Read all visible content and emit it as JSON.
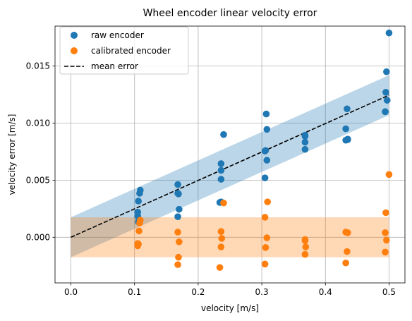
{
  "chart_data": {
    "type": "scatter",
    "title": "Wheel encoder linear velocity error",
    "xlabel": "velocity [m/s]",
    "ylabel": "velocity error [m/s]",
    "xlim": [
      -0.025,
      0.525
    ],
    "ylim": [
      -0.004,
      0.0185
    ],
    "xticks": [
      0.0,
      0.1,
      0.2,
      0.3,
      0.4,
      0.5
    ],
    "xtick_labels": [
      "0.0",
      "0.1",
      "0.2",
      "0.3",
      "0.4",
      "0.5"
    ],
    "yticks": [
      0.0,
      0.005,
      0.01,
      0.015
    ],
    "ytick_labels": [
      "0.000",
      "0.005",
      "0.010",
      "0.015"
    ],
    "grid": true,
    "legend_position": "top-left",
    "colors": {
      "raw": "#1f77b4",
      "calibrated": "#ff7f0e",
      "mean": "#000000",
      "raw_band": "#1f77b4",
      "calibrated_band": "#ff7f0e"
    },
    "series": [
      {
        "name": "raw encoder",
        "kind": "scatter",
        "x": [
          0.105,
          0.105,
          0.106,
          0.108,
          0.109,
          0.106,
          0.168,
          0.17,
          0.169,
          0.168,
          0.168,
          0.236,
          0.236,
          0.236,
          0.24,
          0.236,
          0.234,
          0.305,
          0.308,
          0.306,
          0.308,
          0.307,
          0.305,
          0.368,
          0.368,
          0.368,
          0.368,
          0.432,
          0.435,
          0.432,
          0.434,
          0.435,
          0.494,
          0.497,
          0.495,
          0.5,
          0.496,
          0.494
        ],
        "y": [
          0.00185,
          0.0022,
          0.00317,
          0.00385,
          0.00413,
          0.00135,
          0.0018,
          0.00245,
          0.0038,
          0.00385,
          0.00462,
          0.0031,
          0.00508,
          0.00586,
          0.009,
          0.00645,
          0.00305,
          0.0052,
          0.00675,
          0.0076,
          0.00945,
          0.0108,
          0.00755,
          0.0077,
          0.00833,
          0.00885,
          0.00895,
          0.0085,
          0.00855,
          0.0095,
          0.01125,
          0.0086,
          0.011,
          0.012,
          0.0127,
          0.0179,
          0.0145,
          0.011
        ]
      },
      {
        "name": "calibrated encoder",
        "kind": "scatter",
        "x": [
          0.105,
          0.106,
          0.107,
          0.108,
          0.109,
          0.105,
          0.168,
          0.169,
          0.17,
          0.168,
          0.236,
          0.237,
          0.236,
          0.24,
          0.234,
          0.305,
          0.306,
          0.308,
          0.309,
          0.305,
          0.368,
          0.369,
          0.368,
          0.368,
          0.432,
          0.434,
          0.435,
          0.432,
          0.494,
          0.496,
          0.495,
          0.5,
          0.494
        ],
        "y": [
          -0.00075,
          -0.0006,
          0.00055,
          0.00125,
          0.0015,
          -0.00055,
          -0.0024,
          -0.00175,
          -0.0004,
          0.00045,
          -0.00085,
          -0.0001,
          0.0005,
          0.003,
          -0.00265,
          -0.00235,
          -0.0009,
          -5e-05,
          0.0031,
          0.00175,
          -0.0015,
          -0.00085,
          -0.0003,
          -0.0002,
          -0.00225,
          -0.00125,
          0.0004,
          0.00045,
          -0.0013,
          -0.00025,
          0.00215,
          0.0055,
          0.0004
        ]
      },
      {
        "name": "mean error",
        "kind": "line",
        "style": "dashed",
        "x": [
          0.0,
          0.5
        ],
        "y": [
          0.0,
          0.01245
        ]
      }
    ],
    "bands": [
      {
        "series": "raw encoder",
        "x": [
          0.0,
          0.5
        ],
        "y_low": [
          -0.00175,
          0.0107
        ],
        "y_high": [
          0.00175,
          0.0142
        ]
      },
      {
        "series": "calibrated encoder",
        "x": [
          0.0,
          0.5
        ],
        "y_low": [
          -0.00175,
          -0.00175
        ],
        "y_high": [
          0.00175,
          0.00175
        ]
      }
    ]
  }
}
